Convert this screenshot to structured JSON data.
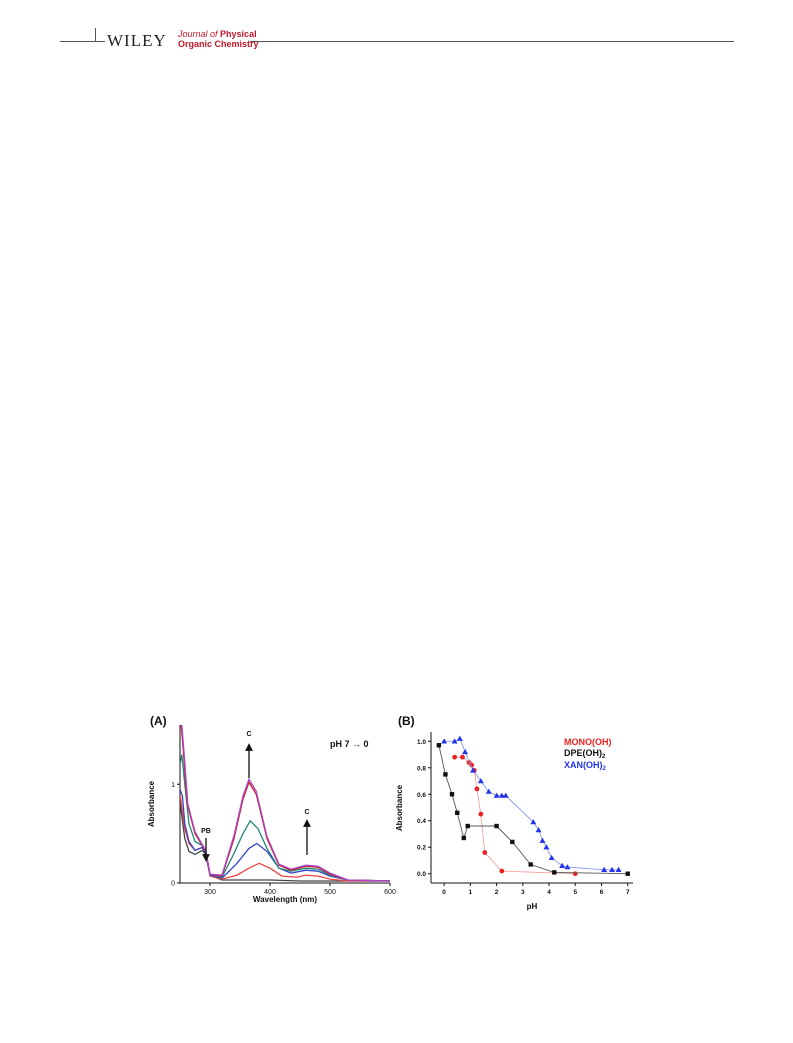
{
  "header": {
    "publisher": "WILEY",
    "journal_line1_prefix": "Journal of",
    "journal_line1_suffix": "Physical",
    "journal_line2": "Organic Chemistry"
  },
  "chart_data": [
    {
      "type": "line",
      "panel_label": "(A)",
      "xlabel": "Wavelength (nm)",
      "ylabel": "Absorbance",
      "xlim": [
        250,
        600
      ],
      "ylim": [
        0,
        1.6
      ],
      "xticks": [
        300,
        400,
        500,
        600
      ],
      "yticks": [
        0,
        1
      ],
      "annotations": [
        {
          "text": "pH 7 → 0"
        },
        {
          "text": "PB",
          "arrow": "down",
          "x": 295
        },
        {
          "text": "C",
          "arrow": "up",
          "x": 365
        },
        {
          "text": "C",
          "arrow": "up",
          "x": 460
        }
      ],
      "series": [
        {
          "color": "#444444",
          "points": [
            [
              250,
              0.82
            ],
            [
              258,
              0.45
            ],
            [
              265,
              0.32
            ],
            [
              275,
              0.29
            ],
            [
              287,
              0.33
            ],
            [
              293,
              0.29
            ],
            [
              300,
              0.08
            ],
            [
              320,
              0.03
            ],
            [
              350,
              0.03
            ],
            [
              400,
              0.03
            ],
            [
              450,
              0.02
            ],
            [
              500,
              0.02
            ],
            [
              550,
              0.02
            ],
            [
              600,
              0.02
            ]
          ]
        },
        {
          "color": "#ee4444",
          "points": [
            [
              250,
              0.9
            ],
            [
              258,
              0.55
            ],
            [
              265,
              0.4
            ],
            [
              275,
              0.33
            ],
            [
              287,
              0.36
            ],
            [
              293,
              0.3
            ],
            [
              300,
              0.07
            ],
            [
              320,
              0.04
            ],
            [
              345,
              0.08
            ],
            [
              365,
              0.15
            ],
            [
              382,
              0.2
            ],
            [
              400,
              0.15
            ],
            [
              420,
              0.07
            ],
            [
              445,
              0.06
            ],
            [
              460,
              0.08
            ],
            [
              480,
              0.07
            ],
            [
              500,
              0.04
            ],
            [
              530,
              0.02
            ],
            [
              600,
              0.02
            ]
          ]
        },
        {
          "color": "#3344cc",
          "points": [
            [
              250,
              0.95
            ],
            [
              254,
              0.88
            ],
            [
              258,
              0.6
            ],
            [
              265,
              0.42
            ],
            [
              275,
              0.33
            ],
            [
              287,
              0.36
            ],
            [
              293,
              0.3
            ],
            [
              300,
              0.08
            ],
            [
              320,
              0.05
            ],
            [
              345,
              0.2
            ],
            [
              365,
              0.35
            ],
            [
              378,
              0.4
            ],
            [
              395,
              0.32
            ],
            [
              415,
              0.15
            ],
            [
              435,
              0.1
            ],
            [
              460,
              0.13
            ],
            [
              480,
              0.12
            ],
            [
              500,
              0.07
            ],
            [
              530,
              0.03
            ],
            [
              600,
              0.02
            ]
          ]
        },
        {
          "color": "#228877",
          "points": [
            [
              250,
              1.2
            ],
            [
              253,
              1.3
            ],
            [
              258,
              1.0
            ],
            [
              265,
              0.6
            ],
            [
              275,
              0.42
            ],
            [
              287,
              0.38
            ],
            [
              293,
              0.32
            ],
            [
              300,
              0.09
            ],
            [
              320,
              0.06
            ],
            [
              340,
              0.3
            ],
            [
              355,
              0.5
            ],
            [
              367,
              0.63
            ],
            [
              380,
              0.55
            ],
            [
              395,
              0.35
            ],
            [
              415,
              0.15
            ],
            [
              435,
              0.12
            ],
            [
              460,
              0.15
            ],
            [
              480,
              0.14
            ],
            [
              500,
              0.08
            ],
            [
              530,
              0.03
            ],
            [
              600,
              0.02
            ]
          ]
        },
        {
          "color": "#cc2222",
          "points": [
            [
              252,
              1.6
            ],
            [
              256,
              1.3
            ],
            [
              262,
              0.8
            ],
            [
              275,
              0.5
            ],
            [
              287,
              0.38
            ],
            [
              293,
              0.32
            ],
            [
              300,
              0.09
            ],
            [
              320,
              0.07
            ],
            [
              340,
              0.45
            ],
            [
              355,
              0.85
            ],
            [
              365,
              1.02
            ],
            [
              377,
              0.9
            ],
            [
              395,
              0.45
            ],
            [
              415,
              0.18
            ],
            [
              435,
              0.13
            ],
            [
              460,
              0.17
            ],
            [
              480,
              0.16
            ],
            [
              500,
              0.09
            ],
            [
              530,
              0.03
            ],
            [
              600,
              0.02
            ]
          ]
        },
        {
          "color": "#aa44cc",
          "points": [
            [
              253,
              1.6
            ],
            [
              257,
              1.3
            ],
            [
              263,
              0.8
            ],
            [
              275,
              0.52
            ],
            [
              287,
              0.39
            ],
            [
              293,
              0.33
            ],
            [
              300,
              0.09
            ],
            [
              320,
              0.08
            ],
            [
              340,
              0.48
            ],
            [
              355,
              0.88
            ],
            [
              365,
              1.05
            ],
            [
              377,
              0.93
            ],
            [
              395,
              0.47
            ],
            [
              415,
              0.19
            ],
            [
              435,
              0.14
            ],
            [
              460,
              0.18
            ],
            [
              480,
              0.17
            ],
            [
              500,
              0.1
            ],
            [
              530,
              0.03
            ],
            [
              600,
              0.02
            ]
          ]
        }
      ]
    },
    {
      "type": "scatter",
      "panel_label": "(B)",
      "xlabel": "pH",
      "ylabel": "Absorbance",
      "xlim": [
        -0.5,
        7.2
      ],
      "ylim": [
        -0.07,
        1.07
      ],
      "xticks": [
        0,
        1,
        2,
        3,
        4,
        5,
        6,
        7
      ],
      "yticks": [
        0.0,
        0.2,
        0.4,
        0.6,
        0.8,
        1.0
      ],
      "legend_position": "top-right",
      "series": [
        {
          "name": "MONO(OH)",
          "color": "#ee2020",
          "line_color": "#f4a0a0",
          "marker": "circle",
          "points": [
            [
              0.4,
              0.88
            ],
            [
              0.7,
              0.88
            ],
            [
              0.95,
              0.84
            ],
            [
              1.05,
              0.82
            ],
            [
              1.15,
              0.78
            ],
            [
              1.25,
              0.64
            ],
            [
              1.4,
              0.45
            ],
            [
              1.55,
              0.16
            ],
            [
              2.2,
              0.02
            ],
            [
              5.0,
              0.0
            ]
          ]
        },
        {
          "name": "DPE(OH)",
          "name_subscript": "2",
          "color": "#111111",
          "line_color": "#555555",
          "marker": "square",
          "points": [
            [
              -0.2,
              0.97
            ],
            [
              0.05,
              0.75
            ],
            [
              0.3,
              0.6
            ],
            [
              0.5,
              0.46
            ],
            [
              0.75,
              0.27
            ],
            [
              0.9,
              0.36
            ],
            [
              2.0,
              0.36
            ],
            [
              2.6,
              0.24
            ],
            [
              3.3,
              0.07
            ],
            [
              4.2,
              0.01
            ],
            [
              7.0,
              0.0
            ]
          ]
        },
        {
          "name": "XAN(OH)",
          "name_subscript": "2",
          "color": "#2233ee",
          "line_color": "#8899ee",
          "marker": "triangle",
          "points": [
            [
              0.0,
              1.0
            ],
            [
              0.4,
              1.0
            ],
            [
              0.6,
              1.02
            ],
            [
              0.8,
              0.92
            ],
            [
              1.1,
              0.78
            ],
            [
              1.4,
              0.7
            ],
            [
              1.7,
              0.62
            ],
            [
              2.0,
              0.59
            ],
            [
              2.2,
              0.59
            ],
            [
              2.35,
              0.59
            ],
            [
              3.4,
              0.39
            ],
            [
              3.6,
              0.33
            ],
            [
              3.75,
              0.25
            ],
            [
              3.9,
              0.2
            ],
            [
              4.1,
              0.12
            ],
            [
              4.5,
              0.06
            ],
            [
              4.7,
              0.05
            ],
            [
              6.1,
              0.03
            ],
            [
              6.4,
              0.03
            ],
            [
              6.65,
              0.03
            ]
          ]
        }
      ]
    }
  ]
}
